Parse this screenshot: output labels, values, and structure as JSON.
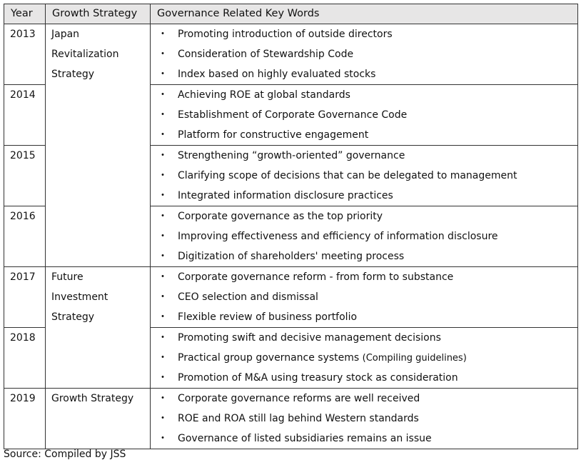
{
  "header": {
    "year": "Year",
    "strategy": "Growth Strategy",
    "keywords": "Governance Related Key Words"
  },
  "bullet": "・",
  "rows": [
    {
      "year": "2013",
      "strategy": [
        "Japan",
        "Revitalization",
        "Strategy"
      ],
      "strategy_rowspan": 4,
      "keywords": [
        {
          "text": "Promoting introduction of outside directors"
        },
        {
          "text": "Consideration of Stewardship Code"
        },
        {
          "text": "Index based on highly evaluated stocks"
        }
      ]
    },
    {
      "year": "2014",
      "keywords": [
        {
          "text": "Achieving ROE at global standards"
        },
        {
          "text": "Establishment of Corporate Governance Code"
        },
        {
          "text": "Platform for constructive engagement"
        }
      ]
    },
    {
      "year": "2015",
      "keywords": [
        {
          "text": "Strengthening “growth-oriented” governance"
        },
        {
          "text": "Clarifying scope of decisions that can be delegated to management"
        },
        {
          "text": "Integrated information disclosure practices"
        }
      ]
    },
    {
      "year": "2016",
      "keywords": [
        {
          "text": "Corporate governance as the top priority"
        },
        {
          "text": "Improving effectiveness and efficiency of information disclosure"
        },
        {
          "text": "Digitization of shareholders' meeting process"
        }
      ]
    },
    {
      "year": "2017",
      "strategy": [
        "Future",
        "Investment",
        "Strategy"
      ],
      "strategy_rowspan": 2,
      "keywords": [
        {
          "text": "Corporate governance reform - from form to substance"
        },
        {
          "text": "CEO selection and dismissal"
        },
        {
          "text": "Flexible review of business portfolio"
        }
      ]
    },
    {
      "year": "2018",
      "keywords": [
        {
          "text": "Promoting swift and decisive management decisions"
        },
        {
          "text": "Practical group governance systems",
          "note": "(Compiling guidelines)"
        },
        {
          "text": "Promotion of M&A using treasury stock as consideration"
        }
      ]
    },
    {
      "year": "2019",
      "strategy": [
        "Growth Strategy"
      ],
      "strategy_rowspan": 1,
      "keywords": [
        {
          "text": "Corporate governance reforms are well received"
        },
        {
          "text": "ROE and ROA still lag behind Western standards"
        },
        {
          "text": "Governance of listed subsidiaries remains an issue"
        }
      ]
    }
  ],
  "source": "Source: Compiled by JSS"
}
